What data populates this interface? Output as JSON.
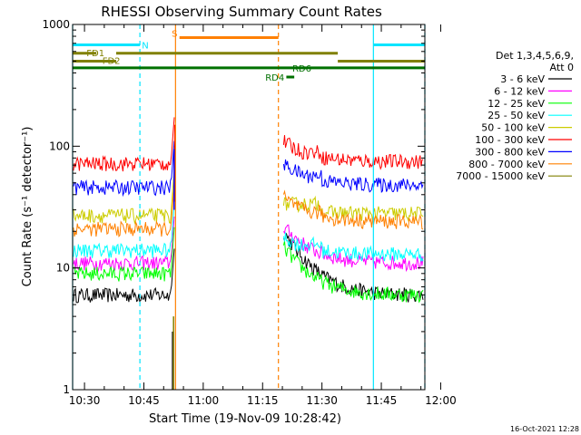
{
  "chart_data": {
    "type": "line",
    "title": "RHESSI Observing Summary Count Rates",
    "xlabel": "Start Time (19-Nov-09 10:28:42)",
    "ylabel": "Count Rate (s⁻¹ detector⁻¹)",
    "ylim": [
      1,
      1000
    ],
    "yscale": "log",
    "y_ticks": [
      {
        "value": 1,
        "label": "1"
      },
      {
        "value": 10,
        "label": "10"
      },
      {
        "value": 100,
        "label": "100"
      },
      {
        "value": 1000,
        "label": "1000"
      }
    ],
    "x_range_minutes": [
      -3,
      86
    ],
    "x_ticks": [
      {
        "value": 0,
        "label": "10:30"
      },
      {
        "value": 15,
        "label": "10:45"
      },
      {
        "value": 30,
        "label": "11:00"
      },
      {
        "value": 45,
        "label": "11:15"
      },
      {
        "value": 60,
        "label": "11:30"
      },
      {
        "value": 75,
        "label": "11:45"
      },
      {
        "value": 90,
        "label": "12:00"
      }
    ],
    "legend": {
      "placement": "right",
      "header_line1": "Det 1,3,4,5,6,9,",
      "header_line2": "Att 0",
      "entries": [
        {
          "name": "3 - 6 keV",
          "color": "#000000"
        },
        {
          "name": "6 - 12 keV",
          "color": "#ff00ff"
        },
        {
          "name": "12 - 25 keV",
          "color": "#00ff00"
        },
        {
          "name": "25 - 50 keV",
          "color": "#00ffff"
        },
        {
          "name": "50 - 100 keV",
          "color": "#cccc00"
        },
        {
          "name": "100 - 300 keV",
          "color": "#ff0000"
        },
        {
          "name": "300 - 800 keV",
          "color": "#0000ff"
        },
        {
          "name": "800 - 7000 keV",
          "color": "#ff8000"
        },
        {
          "name": "7000 - 15000 keV",
          "color": "#808000"
        }
      ]
    },
    "flags": [
      {
        "label": "N",
        "color": "#00e5ff",
        "segments": [
          [
            -3,
            14
          ],
          [
            73,
            86
          ]
        ],
        "level": 680
      },
      {
        "label": "S",
        "color": "#ff8000",
        "segments": [
          [
            24,
            49
          ]
        ],
        "level": 780
      },
      {
        "label": "FD1",
        "color": "#808000",
        "segments": [
          [
            -3,
            3
          ],
          [
            8,
            64
          ]
        ],
        "level": 580
      },
      {
        "label": "FD2",
        "color": "#808000",
        "segments": [
          [
            -3,
            8
          ],
          [
            64,
            86
          ]
        ],
        "level": 500
      },
      {
        "label": "",
        "color": "#007000",
        "segments": [
          [
            -3,
            86
          ]
        ],
        "level": 440
      },
      {
        "label": "RD4",
        "color": "#007000",
        "segments": [
          [
            51,
            53
          ]
        ],
        "level": 370
      },
      {
        "label": "RD6",
        "color": "#007000",
        "segments": [],
        "level": 440
      }
    ],
    "vlines": [
      {
        "x": -3,
        "color": "#00e5ff",
        "style": "solid"
      },
      {
        "x": 14,
        "color": "#00e5ff",
        "style": "dashed"
      },
      {
        "x": 23,
        "color": "#ff8000",
        "style": "solid"
      },
      {
        "x": 49,
        "color": "#ff8000",
        "style": "dashed"
      },
      {
        "x": 73,
        "color": "#00e5ff",
        "style": "solid"
      },
      {
        "x": 86,
        "color": "#00e5ff",
        "style": "dashed"
      }
    ],
    "gap": [
      23,
      50
    ],
    "series_shape": [
      {
        "name": "3 - 6 keV",
        "before": 6,
        "post_peak": 20,
        "late_from": 64,
        "late": 6
      },
      {
        "name": "6 - 12 keV",
        "before": 11,
        "post_peak": 22,
        "late_from": 60,
        "late": 11
      },
      {
        "name": "12 - 25 keV",
        "before": 9,
        "post_peak": 15,
        "late_from": 60,
        "late": 6
      },
      {
        "name": "25 - 50 keV",
        "before": 14,
        "post_peak": 18,
        "late_from": 60,
        "late": 13
      },
      {
        "name": "50 - 100 keV",
        "before": 27,
        "post_peak": 33,
        "late_from": 60,
        "late": 28
      },
      {
        "name": "100 - 300 keV",
        "before": 72,
        "post_peak": 110,
        "late_from": 60,
        "late": 75
      },
      {
        "name": "300 - 800 keV",
        "before": 46,
        "post_peak": 72,
        "late_from": 60,
        "late": 48
      },
      {
        "name": "800 - 7000 keV",
        "before": 21,
        "post_peak": 38,
        "late_from": 60,
        "late": 24
      },
      {
        "name": "7000 - 15000 keV",
        "before": 0,
        "post_peak": 0,
        "late_from": 0,
        "late": 0
      }
    ],
    "footer_timestamp": "16-Oct-2021 12:28"
  }
}
